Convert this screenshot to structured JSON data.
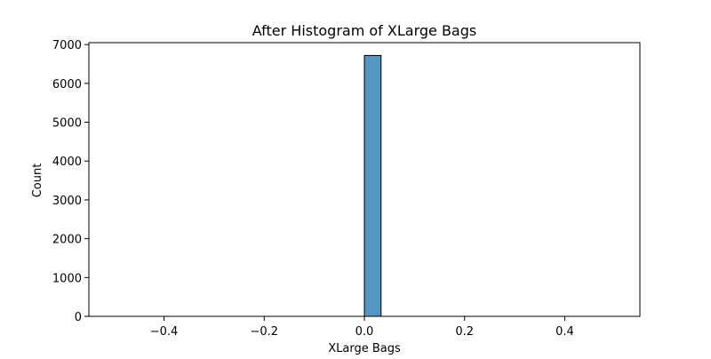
{
  "chart_data": {
    "type": "histogram",
    "title": "After Histogram of XLarge Bags",
    "xlabel": "XLarge Bags",
    "ylabel": "Count",
    "xlim": [
      -0.55,
      0.55
    ],
    "ylim": [
      0,
      7050
    ],
    "x_ticks": [
      {
        "value": -0.4,
        "label": "−0.4"
      },
      {
        "value": -0.2,
        "label": "−0.2"
      },
      {
        "value": 0.0,
        "label": "0.0"
      },
      {
        "value": 0.2,
        "label": "0.2"
      },
      {
        "value": 0.4,
        "label": "0.4"
      }
    ],
    "y_ticks": [
      {
        "value": 0,
        "label": "0"
      },
      {
        "value": 1000,
        "label": "1000"
      },
      {
        "value": 2000,
        "label": "2000"
      },
      {
        "value": 3000,
        "label": "3000"
      },
      {
        "value": 4000,
        "label": "4000"
      },
      {
        "value": 5000,
        "label": "5000"
      },
      {
        "value": 6000,
        "label": "6000"
      },
      {
        "value": 7000,
        "label": "7000"
      }
    ],
    "bin_range": [
      -0.5,
      0.5
    ],
    "bin_count": 30,
    "bins": [
      {
        "x0": 0.0,
        "x1": 0.0333,
        "count": 6720
      }
    ],
    "colors": {
      "bar_fill": "#5497c6",
      "bar_edge": "#000000",
      "axis": "#000000"
    },
    "grid": false
  }
}
